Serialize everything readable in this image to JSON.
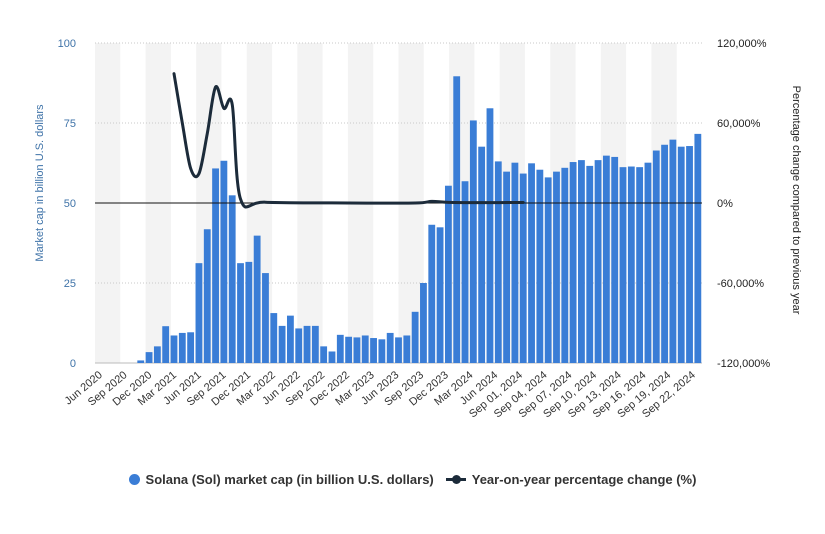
{
  "chart_data": {
    "type": "bar",
    "bar_color": "#3a7dd6",
    "line_color": "#1c2b3a",
    "ylabel": "Market cap in billion U.S. dollars",
    "y2label": "Percentage change compared to previous year",
    "ylim": [
      0,
      100
    ],
    "y2lim": [
      -120000,
      120000
    ],
    "y_ticks": [
      "0",
      "25",
      "50",
      "75",
      "100"
    ],
    "y2_ticks": [
      "-120,000%",
      "-60,000%",
      "0%",
      "60,000%",
      "120,000%"
    ],
    "x_tick_labels": [
      "Jun 2020",
      "Sep 2020",
      "Dec 2020",
      "Mar 2021",
      "Jun 2021",
      "Sep 2021",
      "Dec 2021",
      "Mar 2022",
      "Jun 2022",
      "Sep 2022",
      "Dec 2022",
      "Mar 2023",
      "Jun 2023",
      "Sep 2023",
      "Dec 2023",
      "Mar 2024",
      "Jun 2024",
      "Sep 01, 2024",
      "Sep 04, 2024",
      "Sep 07, 2024",
      "Sep 10, 2024",
      "Sep 13, 2024",
      "Sep 16, 2024",
      "Sep 19, 2024",
      "Sep 22, 2024"
    ],
    "series": [
      {
        "name": "Solana (Sol) market cap (in billion U.S. dollars)",
        "type": "bar",
        "values": [
          0,
          0,
          0,
          0,
          0,
          0.8,
          3.4,
          5.2,
          11.5,
          8.6,
          9.4,
          9.6,
          31.2,
          41.8,
          60.8,
          63.2,
          52.4,
          31.2,
          31.6,
          39.8,
          28.1,
          15.6,
          11.6,
          14.8,
          10.8,
          11.6,
          11.6,
          5.2,
          3.6,
          8.8,
          8.2,
          8.0,
          8.6,
          7.8,
          7.4,
          9.4,
          8.0,
          8.6,
          16.0,
          25.0,
          43.2,
          42.4,
          55.4,
          89.6,
          56.8,
          75.8,
          67.6,
          79.6,
          63.0,
          59.8,
          62.6,
          59.2,
          62.4,
          60.4,
          58.0,
          59.8,
          61.0,
          62.8,
          63.4,
          61.6,
          63.4,
          64.8,
          64.4,
          61.2,
          61.4,
          61.2,
          62.6,
          66.4,
          68.2,
          69.8,
          67.6,
          67.8,
          71.6
        ]
      },
      {
        "name": "Year-on-year percentage change (%)",
        "type": "line",
        "points": [
          {
            "bar": 9,
            "value": 97000
          },
          {
            "bar": 10,
            "value": 60000
          },
          {
            "bar": 11,
            "value": 26000
          },
          {
            "bar": 12,
            "value": 22000
          },
          {
            "bar": 13,
            "value": 52000
          },
          {
            "bar": 14,
            "value": 87000
          },
          {
            "bar": 15,
            "value": 71000
          },
          {
            "bar": 16,
            "value": 74000
          },
          {
            "bar": 17,
            "value": 3000
          },
          {
            "bar": 20,
            "value": 600
          },
          {
            "bar": 30,
            "value": 0
          },
          {
            "bar": 38,
            "value": 0
          },
          {
            "bar": 40,
            "value": 1200
          },
          {
            "bar": 42,
            "value": 500
          },
          {
            "bar": 46,
            "value": 300
          },
          {
            "bar": 51,
            "value": 400
          }
        ]
      }
    ],
    "grid": true,
    "legend_position": "bottom"
  }
}
